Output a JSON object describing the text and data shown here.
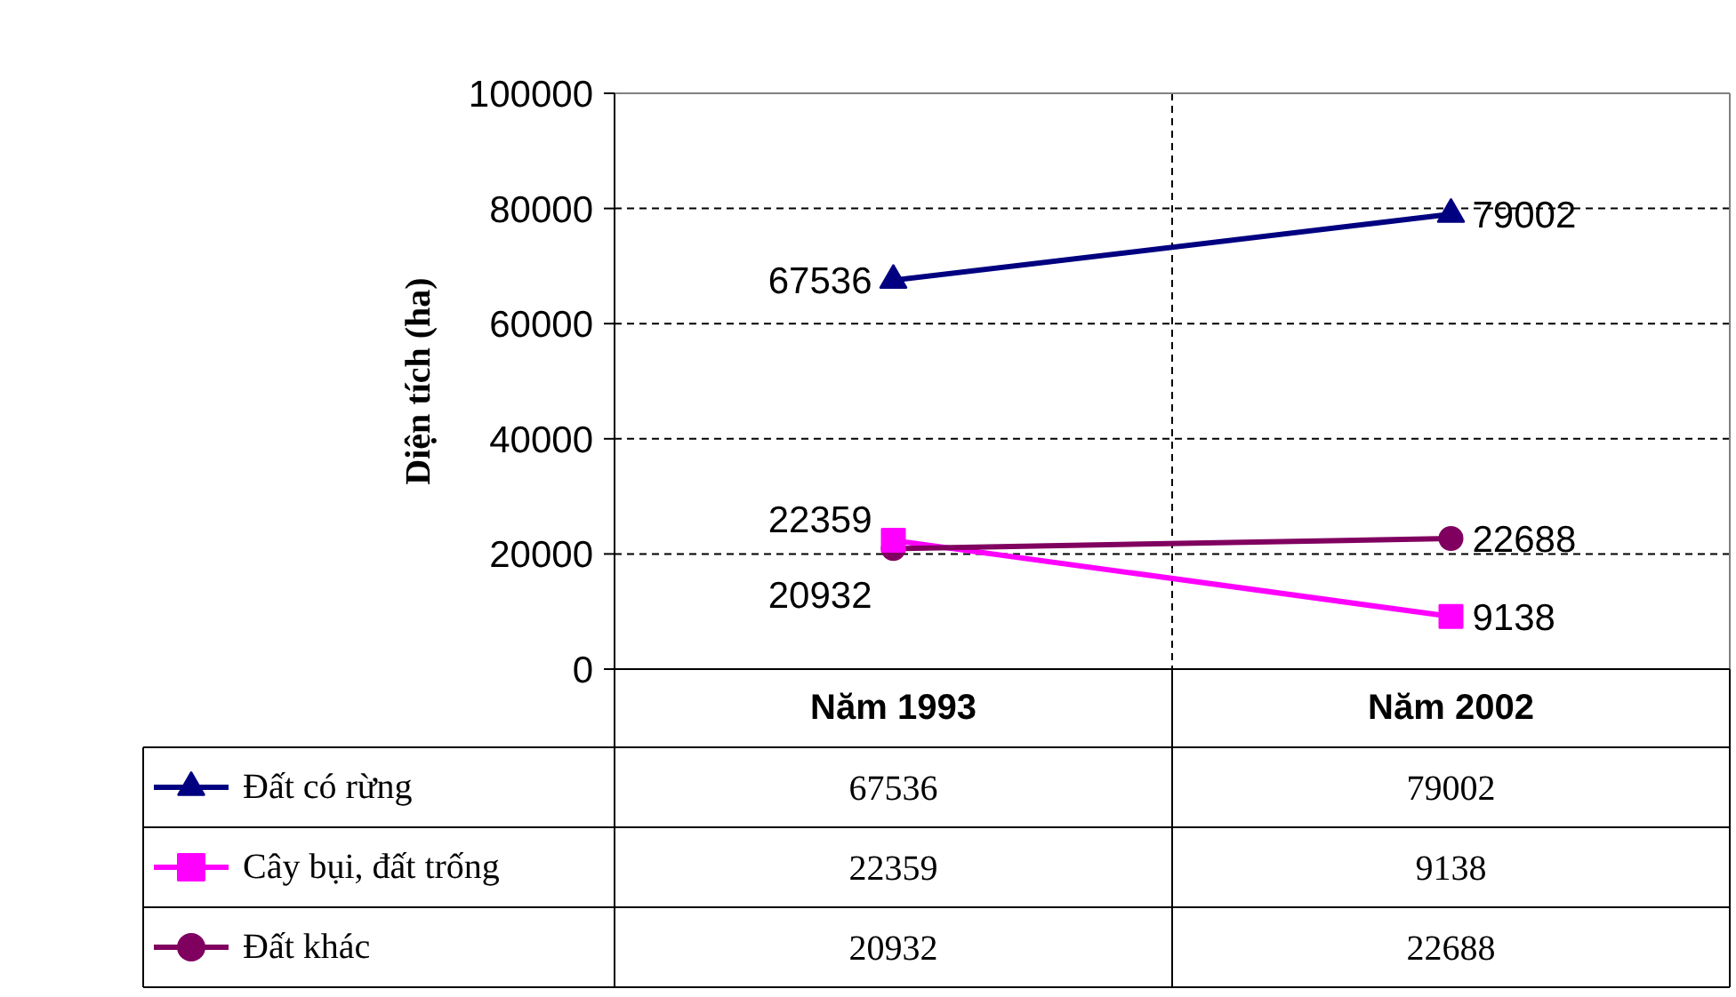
{
  "chart_data": {
    "type": "line",
    "ylabel": "Diện tích (ha)",
    "categories": [
      "Năm 1993",
      "Năm 2002"
    ],
    "series": [
      {
        "name": "Đất có rừng",
        "color": "#000080",
        "values": [
          67536,
          79002
        ],
        "value_labels": [
          "67536",
          "79002"
        ],
        "marker": "triangle"
      },
      {
        "name": "Cây bụi, đất trống",
        "color": "#ff00ff",
        "values": [
          22359,
          9138
        ],
        "value_labels": [
          "22359",
          "9138"
        ],
        "marker": "square"
      },
      {
        "name": "Đất khác",
        "color": "#800060",
        "values": [
          20932,
          22688
        ],
        "value_labels": [
          "20932",
          "22688"
        ],
        "marker": "circle"
      }
    ],
    "ylim": [
      0,
      100000
    ],
    "yticks": [
      0,
      20000,
      40000,
      60000,
      80000,
      100000
    ],
    "grid": true,
    "legend": "bottom"
  }
}
